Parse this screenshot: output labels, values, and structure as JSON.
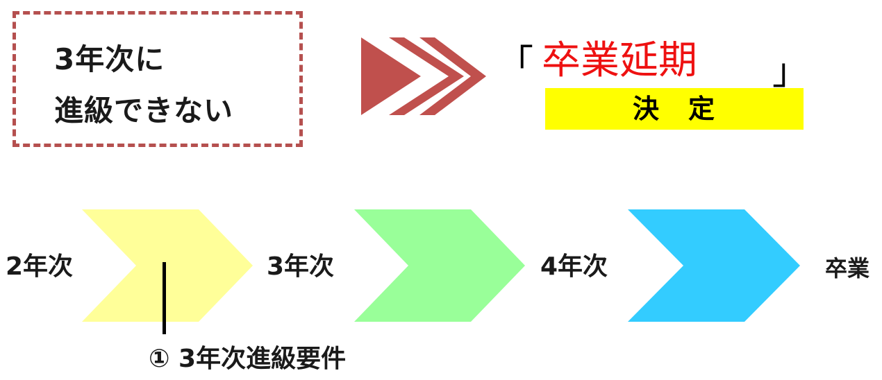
{
  "condition": {
    "line1": "3年次に",
    "line2": "進級できない"
  },
  "result": {
    "open_bracket": "「",
    "word": "卒業延期",
    "close_bracket": "」",
    "decided": "決　定"
  },
  "stages": [
    {
      "label": "2年次"
    },
    {
      "label": "3年次"
    },
    {
      "label": "4年次"
    },
    {
      "label": "卒業"
    }
  ],
  "requirement": {
    "label": "① 3年次進級要件"
  },
  "colors": {
    "dash_border": "#b5504f",
    "arrow": "#c0504d",
    "result_red": "#ee1111",
    "highlight_yellow": "#ffff00",
    "chevron_yellow": "#ffff99",
    "chevron_green": "#99ff99",
    "chevron_blue": "#33ccff"
  }
}
